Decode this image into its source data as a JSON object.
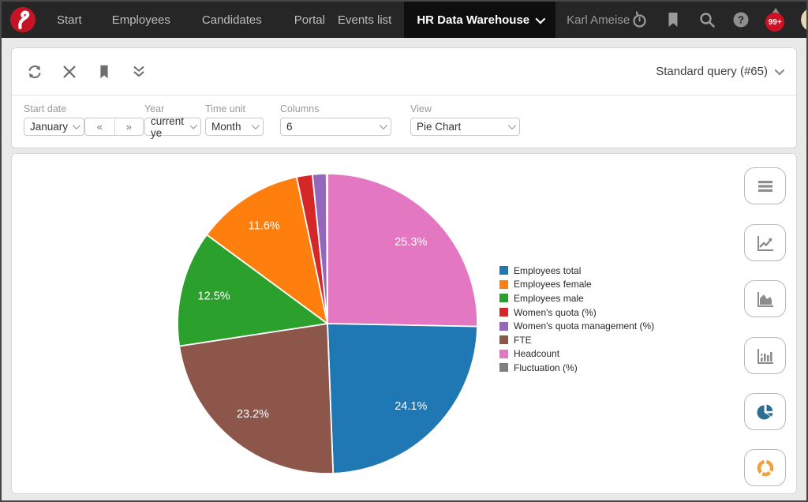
{
  "nav": {
    "items": [
      {
        "label": "Start"
      },
      {
        "label": "Employees"
      },
      {
        "label": "Candidates"
      },
      {
        "label": "Portal"
      },
      {
        "label": "Events list"
      }
    ],
    "active_item": "HR Data Warehouse",
    "user": "Karl Ameise",
    "notification_badge": "99+"
  },
  "toolbar": {
    "query_selector": "Standard query (#65)"
  },
  "filters": {
    "start_date": {
      "label": "Start date",
      "value": "January"
    },
    "prev_label": "«",
    "next_label": "»",
    "year": {
      "label": "Year",
      "value": "current ye"
    },
    "time_unit": {
      "label": "Time unit",
      "value": "Month"
    },
    "columns": {
      "label": "Columns",
      "value": "6"
    },
    "view": {
      "label": "View",
      "value": "Pie Chart"
    }
  },
  "chart_data": {
    "type": "pie",
    "direction": "clockwise",
    "start_angle_deg": 0,
    "legend_position": "right",
    "slices": [
      {
        "name": "Headcount",
        "pct": 25.3,
        "label": "25.3%",
        "color": "#e377c2"
      },
      {
        "name": "Employees total",
        "pct": 24.1,
        "label": "24.1%",
        "color": "#1f77b4"
      },
      {
        "name": "FTE",
        "pct": 23.2,
        "label": "23.2%",
        "color": "#8c564b"
      },
      {
        "name": "Employees male",
        "pct": 12.5,
        "label": "12.5%",
        "color": "#2ca02c"
      },
      {
        "name": "Employees female",
        "pct": 11.6,
        "label": "11.6%",
        "color": "#ff7f0e"
      },
      {
        "name": "Women's quota (%)",
        "pct": 1.7,
        "label": "",
        "color": "#d62728"
      },
      {
        "name": "Women's quota management (%)",
        "pct": 1.5,
        "label": "",
        "color": "#9467bd"
      },
      {
        "name": "Fluctuation (%)",
        "pct": 0.1,
        "label": "",
        "color": "#7f7f7f"
      }
    ],
    "legend": [
      {
        "name": "Employees total",
        "color": "#1f77b4"
      },
      {
        "name": "Employees female",
        "color": "#ff7f0e"
      },
      {
        "name": "Employees male",
        "color": "#2ca02c"
      },
      {
        "name": "Women's quota (%)",
        "color": "#d62728"
      },
      {
        "name": "Women's quota management (%)",
        "color": "#9467bd"
      },
      {
        "name": "FTE",
        "color": "#8c564b"
      },
      {
        "name": "Headcount",
        "color": "#e377c2"
      },
      {
        "name": "Fluctuation (%)",
        "color": "#7f7f7f"
      }
    ]
  },
  "side_buttons": [
    "table view",
    "line chart",
    "area chart",
    "bar chart",
    "pie chart",
    "donut chart"
  ]
}
